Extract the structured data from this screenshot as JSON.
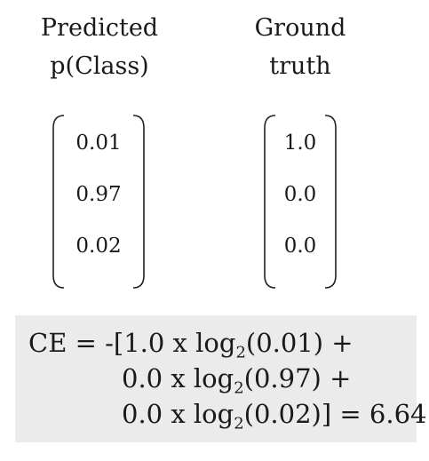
{
  "columns": {
    "predicted": {
      "title_line1": "Predicted",
      "title_line2": "p(Class)",
      "values": [
        "0.01",
        "0.97",
        "0.02"
      ]
    },
    "ground_truth": {
      "title_line1": "Ground",
      "title_line2": "truth",
      "values": [
        "1.0",
        "0.0",
        "0.0"
      ]
    }
  },
  "formula": {
    "lhs": "CE =",
    "line1": {
      "open": "-[1.0 x log",
      "base": "2",
      "arg": "(0.01) +"
    },
    "line2": {
      "open": "0.0 x log",
      "base": "2",
      "arg": "(0.97) +"
    },
    "line3": {
      "open": "0.0 x log",
      "base": "2",
      "arg": "(0.02)] = 6.64"
    }
  }
}
